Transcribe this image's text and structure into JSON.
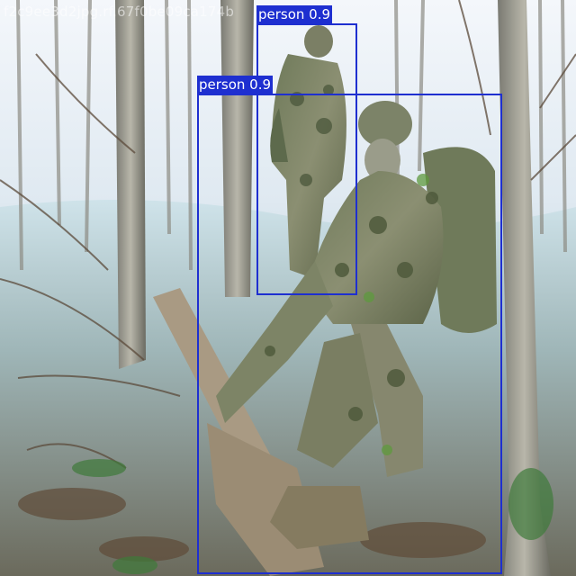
{
  "image": {
    "watermark": "f2c9ee3d2jpg.rf.67f0be09ca174b"
  },
  "detections": [
    {
      "label": "person 0.9",
      "class": "person",
      "confidence": 0.9,
      "color": "#1e2fd0"
    },
    {
      "label": "person 0.9",
      "class": "person",
      "confidence": 0.9,
      "color": "#1e2fd0"
    }
  ]
}
